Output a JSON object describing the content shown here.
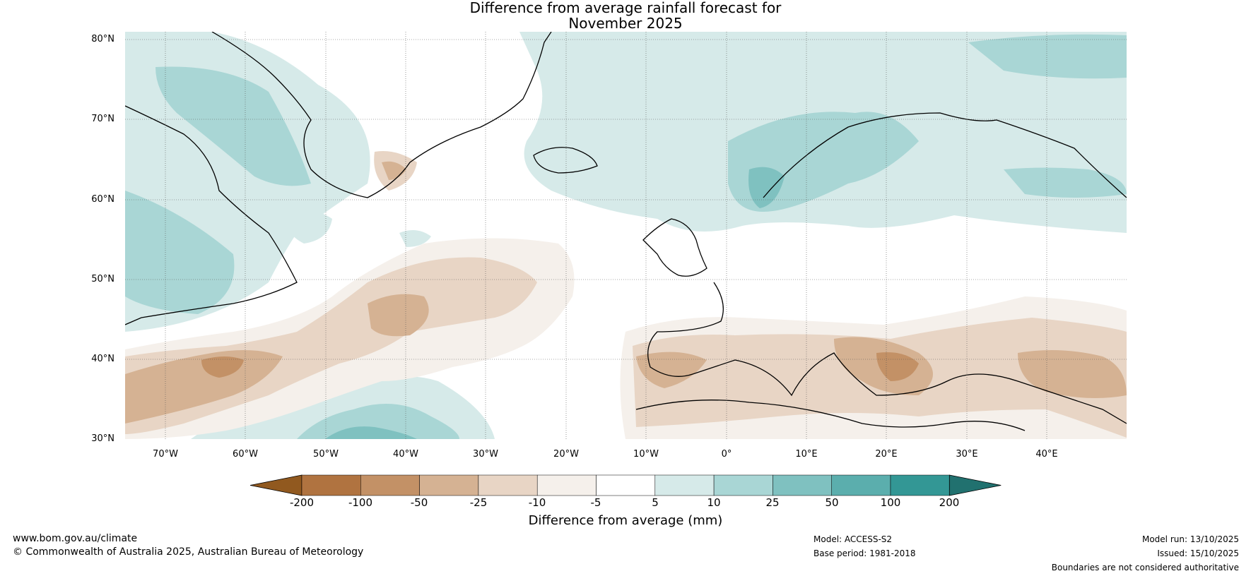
{
  "title": {
    "line1": "Difference from average rainfall forecast for",
    "line2": "November 2025"
  },
  "map": {
    "latitude_labels": [
      "80°N",
      "70°N",
      "60°N",
      "50°N",
      "40°N",
      "30°N"
    ],
    "longitude_labels": [
      "70°W",
      "60°W",
      "50°W",
      "40°W",
      "30°W",
      "20°W",
      "10°W",
      "0°",
      "10°E",
      "20°E",
      "30°E",
      "40°E"
    ],
    "extent": {
      "lon_min": -75,
      "lon_max": 50,
      "lat_min": 30,
      "lat_max": 81
    }
  },
  "colorbar": {
    "ticks": [
      "-200",
      "-100",
      "-50",
      "-25",
      "-10",
      "-5",
      "5",
      "10",
      "25",
      "50",
      "100",
      "200"
    ],
    "label": "Difference from average (mm)",
    "colors": [
      "#91591f",
      "#b07340",
      "#c39166",
      "#d5b293",
      "#e8d5c5",
      "#f5f0eb",
      "#ffffff",
      "#d6eae9",
      "#a9d6d5",
      "#7fc1c0",
      "#5baead",
      "#339795",
      "#21716f"
    ]
  },
  "footer": {
    "url": "www.bom.gov.au/climate",
    "copyright": "© Commonwealth of Australia 2025, Australian Bureau of Meteorology",
    "model": "Model: ACCESS-S2",
    "base_period": "Base period: 1981-2018",
    "model_run": "Model run: 13/10/2025",
    "issued": "Issued: 15/10/2025",
    "disclaimer": "Boundaries are not considered authoritative"
  }
}
